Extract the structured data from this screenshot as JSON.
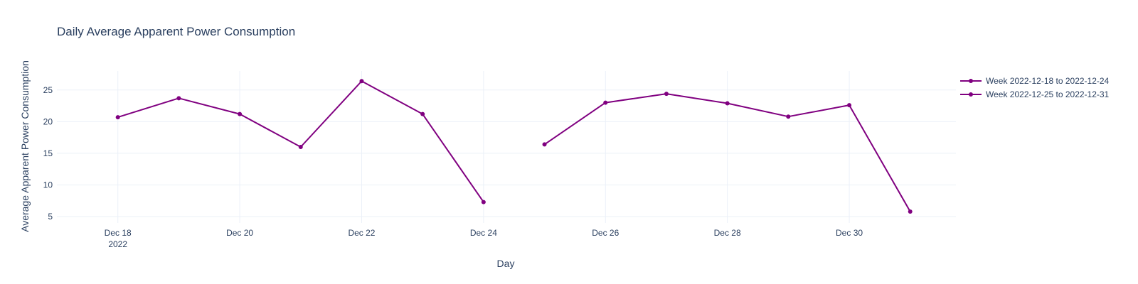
{
  "chart_data": {
    "type": "line",
    "title": "Daily Average Apparent Power Consumption",
    "xlabel": "Day",
    "ylabel": "Average Apparent Power Consumption",
    "x_type": "date",
    "xlim": [
      "2022-12-17",
      "2022-12-31"
    ],
    "ylim": [
      4,
      28
    ],
    "x_ticks": [
      {
        "date": "2022-12-18",
        "label": "Dec 18",
        "sublabel": "2022"
      },
      {
        "date": "2022-12-20",
        "label": "Dec 20",
        "sublabel": ""
      },
      {
        "date": "2022-12-22",
        "label": "Dec 22",
        "sublabel": ""
      },
      {
        "date": "2022-12-24",
        "label": "Dec 24",
        "sublabel": ""
      },
      {
        "date": "2022-12-26",
        "label": "Dec 26",
        "sublabel": ""
      },
      {
        "date": "2022-12-28",
        "label": "Dec 28",
        "sublabel": ""
      },
      {
        "date": "2022-12-30",
        "label": "Dec 30",
        "sublabel": ""
      }
    ],
    "y_ticks": [
      5,
      10,
      15,
      20,
      25
    ],
    "grid": true,
    "legend_position": "top-right",
    "series": [
      {
        "name": "Week 2022-12-18 to 2022-12-24",
        "color": "#800080",
        "x": [
          "2022-12-18",
          "2022-12-19",
          "2022-12-20",
          "2022-12-21",
          "2022-12-22",
          "2022-12-23",
          "2022-12-24"
        ],
        "values": [
          20.7,
          23.7,
          21.2,
          16.0,
          26.4,
          21.2,
          7.3
        ]
      },
      {
        "name": "Week 2022-12-25 to 2022-12-31",
        "color": "#800080",
        "x": [
          "2022-12-25",
          "2022-12-26",
          "2022-12-27",
          "2022-12-28",
          "2022-12-29",
          "2022-12-30",
          "2022-12-31"
        ],
        "values": [
          16.4,
          23.0,
          24.4,
          22.9,
          20.8,
          22.6,
          5.8
        ]
      }
    ]
  }
}
